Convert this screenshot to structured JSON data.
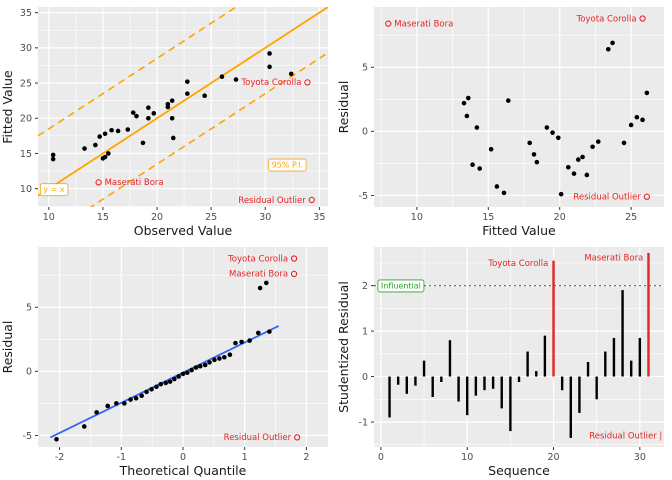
{
  "theme": {
    "panel_bg": "#EBEBEB",
    "grid": "#FFFFFF",
    "point": "#000000",
    "red": "#E62424",
    "orange": "#FFA500",
    "blue": "#3366FF",
    "green": "#2BA02B",
    "axis_text": "#4D4D4D",
    "title_text": "#1A1A1A"
  },
  "chart_data": [
    {
      "name": "fitted-vs-observed",
      "type": "scatter",
      "xlabel": "Observed Value",
      "ylabel": "Fitted Value",
      "xlim": [
        9.0,
        35.8
      ],
      "ylim": [
        7.4,
        35.8
      ],
      "xticks": [
        10,
        15,
        20,
        25,
        30,
        35
      ],
      "yticks": [
        10,
        15,
        20,
        25,
        30,
        35
      ],
      "lines": [
        {
          "name": "identity-line",
          "style": "solid",
          "color": "#FFA500",
          "width": 1.8,
          "slope": 1,
          "intercept": 0
        },
        {
          "name": "pi-upper-line",
          "style": "dashed",
          "color": "#FFA500",
          "width": 1.6,
          "slope": 1,
          "intercept": 8.5
        },
        {
          "name": "pi-lower-line",
          "style": "dashed",
          "color": "#FFA500",
          "width": 1.6,
          "slope": 1,
          "intercept": -6.5
        }
      ],
      "points": [
        [
          10.4,
          14.8
        ],
        [
          10.4,
          14.2
        ],
        [
          13.3,
          15.7
        ],
        [
          14.3,
          16.2
        ],
        [
          14.7,
          17.4
        ],
        [
          15.0,
          14.3
        ],
        [
          15.2,
          17.8
        ],
        [
          15.2,
          14.5
        ],
        [
          15.5,
          15.0
        ],
        [
          15.8,
          18.3
        ],
        [
          16.4,
          18.2
        ],
        [
          17.3,
          18.4
        ],
        [
          17.8,
          20.8
        ],
        [
          18.1,
          20.3
        ],
        [
          18.7,
          16.5
        ],
        [
          19.2,
          21.5
        ],
        [
          19.2,
          20.0
        ],
        [
          19.7,
          20.7
        ],
        [
          21.0,
          21.6
        ],
        [
          21.0,
          22.0
        ],
        [
          21.4,
          22.5
        ],
        [
          21.4,
          20.0
        ],
        [
          21.5,
          17.2
        ],
        [
          22.8,
          25.2
        ],
        [
          22.8,
          23.5
        ],
        [
          24.4,
          23.2
        ],
        [
          26.0,
          25.9
        ],
        [
          27.3,
          25.5
        ],
        [
          30.4,
          27.3
        ],
        [
          30.4,
          29.2
        ],
        [
          32.4,
          26.3
        ]
      ],
      "boxed_labels": [
        {
          "text": "y = x",
          "x": 9.5,
          "y": 9.9,
          "color": "#FFA500"
        },
        {
          "text": "95% P.I.",
          "x": 30.6,
          "y": 13.4,
          "color": "#FFA500"
        }
      ],
      "highlights": [
        {
          "label": "Toyota Corolla",
          "x": 33.9,
          "y": 25.1,
          "label_side": "left"
        },
        {
          "label": "Maserati Bora",
          "x": 14.6,
          "y": 10.9,
          "label_side": "right"
        },
        {
          "label": "Residual Outlier",
          "x": 34.3,
          "y": 8.4,
          "label_side": "left"
        }
      ]
    },
    {
      "name": "residual-vs-fitted",
      "type": "scatter",
      "xlabel": "Fitted Value",
      "ylabel": "Residual",
      "xlim": [
        7.0,
        27.3
      ],
      "ylim": [
        -5.9,
        9.7
      ],
      "xticks": [
        10,
        15,
        20,
        25
      ],
      "yticks": [
        -5,
        0,
        5
      ],
      "points": [
        [
          13.3,
          2.2
        ],
        [
          13.5,
          1.2
        ],
        [
          13.6,
          2.6
        ],
        [
          13.9,
          -2.6
        ],
        [
          14.2,
          0.3
        ],
        [
          14.4,
          -2.9
        ],
        [
          15.2,
          -1.4
        ],
        [
          15.6,
          -4.3
        ],
        [
          16.1,
          -4.8
        ],
        [
          16.4,
          2.4
        ],
        [
          17.9,
          -0.9
        ],
        [
          18.2,
          -1.8
        ],
        [
          18.4,
          -2.4
        ],
        [
          19.1,
          0.3
        ],
        [
          19.5,
          -0.1
        ],
        [
          19.9,
          -0.5
        ],
        [
          20.1,
          -4.9
        ],
        [
          20.6,
          -2.8
        ],
        [
          21.0,
          -3.3
        ],
        [
          21.3,
          -2.2
        ],
        [
          21.6,
          -2.0
        ],
        [
          21.9,
          -3.4
        ],
        [
          22.3,
          -1.2
        ],
        [
          22.7,
          -0.8
        ],
        [
          23.4,
          6.4
        ],
        [
          23.7,
          6.9
        ],
        [
          24.5,
          -0.9
        ],
        [
          25.0,
          0.5
        ],
        [
          25.4,
          1.1
        ],
        [
          25.8,
          0.9
        ],
        [
          26.1,
          3.0
        ]
      ],
      "highlights": [
        {
          "label": "Maserati Bora",
          "x": 8.0,
          "y": 8.4,
          "label_side": "right"
        },
        {
          "label": "Toyota Corolla",
          "x": 25.8,
          "y": 8.8,
          "label_side": "left"
        },
        {
          "label": "Residual Outlier",
          "x": 26.1,
          "y": -5.1,
          "label_side": "left"
        }
      ]
    },
    {
      "name": "qq-plot",
      "type": "scatter",
      "xlabel": "Theoretical Quantile",
      "ylabel": "Residual",
      "xlim": [
        -2.35,
        2.35
      ],
      "ylim": [
        -5.9,
        9.7
      ],
      "xticks": [
        -2,
        -1,
        0,
        1,
        2
      ],
      "yticks": [
        -5,
        0,
        5
      ],
      "lines": [
        {
          "name": "qq-line",
          "style": "solid",
          "color": "#3366FF",
          "width": 1.8,
          "slope": 2.35,
          "intercept": -0.1,
          "xrange": [
            -2.15,
            1.55
          ]
        }
      ],
      "points": [
        [
          -2.05,
          -5.3
        ],
        [
          -1.6,
          -4.3
        ],
        [
          -1.4,
          -3.2
        ],
        [
          -1.22,
          -2.7
        ],
        [
          -1.08,
          -2.5
        ],
        [
          -0.95,
          -2.5
        ],
        [
          -0.85,
          -2.2
        ],
        [
          -0.76,
          -2.1
        ],
        [
          -0.67,
          -1.9
        ],
        [
          -0.59,
          -1.6
        ],
        [
          -0.51,
          -1.4
        ],
        [
          -0.43,
          -1.2
        ],
        [
          -0.36,
          -1.0
        ],
        [
          -0.28,
          -0.9
        ],
        [
          -0.21,
          -0.8
        ],
        [
          -0.14,
          -0.6
        ],
        [
          -0.07,
          -0.4
        ],
        [
          0.0,
          -0.2
        ],
        [
          0.07,
          -0.1
        ],
        [
          0.14,
          0.1
        ],
        [
          0.21,
          0.3
        ],
        [
          0.28,
          0.4
        ],
        [
          0.36,
          0.5
        ],
        [
          0.43,
          0.7
        ],
        [
          0.51,
          0.9
        ],
        [
          0.59,
          1.0
        ],
        [
          0.67,
          1.1
        ],
        [
          0.76,
          1.3
        ],
        [
          0.85,
          2.2
        ],
        [
          0.95,
          2.3
        ],
        [
          1.08,
          2.4
        ],
        [
          1.22,
          3.0
        ],
        [
          1.4,
          3.1
        ],
        [
          1.25,
          6.5
        ],
        [
          1.35,
          6.9
        ]
      ],
      "highlights": [
        {
          "label": "Toyota Corolla",
          "x": 1.8,
          "y": 8.8,
          "label_side": "left"
        },
        {
          "label": "Maserati Bora",
          "x": 1.8,
          "y": 7.6,
          "label_side": "left"
        },
        {
          "label": "Residual Outlier",
          "x": 1.85,
          "y": -5.15,
          "label_side": "left"
        }
      ]
    },
    {
      "name": "studentized-residual-sequence",
      "type": "segment",
      "xlabel": "Sequence",
      "ylabel": "Studentized Residual",
      "xlim": [
        -0.8,
        32.8
      ],
      "ylim": [
        -1.55,
        2.85
      ],
      "xticks": [
        0,
        10,
        20,
        30
      ],
      "yticks": [
        -1,
        0,
        1,
        2
      ],
      "values": [
        -0.9,
        -0.18,
        -0.38,
        -0.2,
        0.35,
        -0.45,
        -0.12,
        0.8,
        -0.55,
        -0.85,
        -0.42,
        -0.3,
        -0.27,
        -0.7,
        -1.2,
        -0.12,
        0.55,
        0.12,
        0.9,
        2.55,
        -0.3,
        -1.35,
        -0.8,
        0.32,
        -0.5,
        0.55,
        0.85,
        1.9,
        0.35,
        0.85,
        2.72
      ],
      "red_indices": [
        20,
        31
      ],
      "threshold": {
        "y": 2,
        "label": "Influential",
        "label_x": 0.0,
        "color": "#2BA02B"
      },
      "annotations": [
        {
          "text": "Toyota Corolla",
          "x": 19.4,
          "y": 2.5,
          "anchor": "end"
        },
        {
          "text": "Maserati Bora",
          "x": 30.4,
          "y": 2.62,
          "anchor": "end"
        },
        {
          "text": "Residual Outlier |",
          "x": 32.6,
          "y": -1.3,
          "anchor": "end"
        }
      ]
    }
  ]
}
